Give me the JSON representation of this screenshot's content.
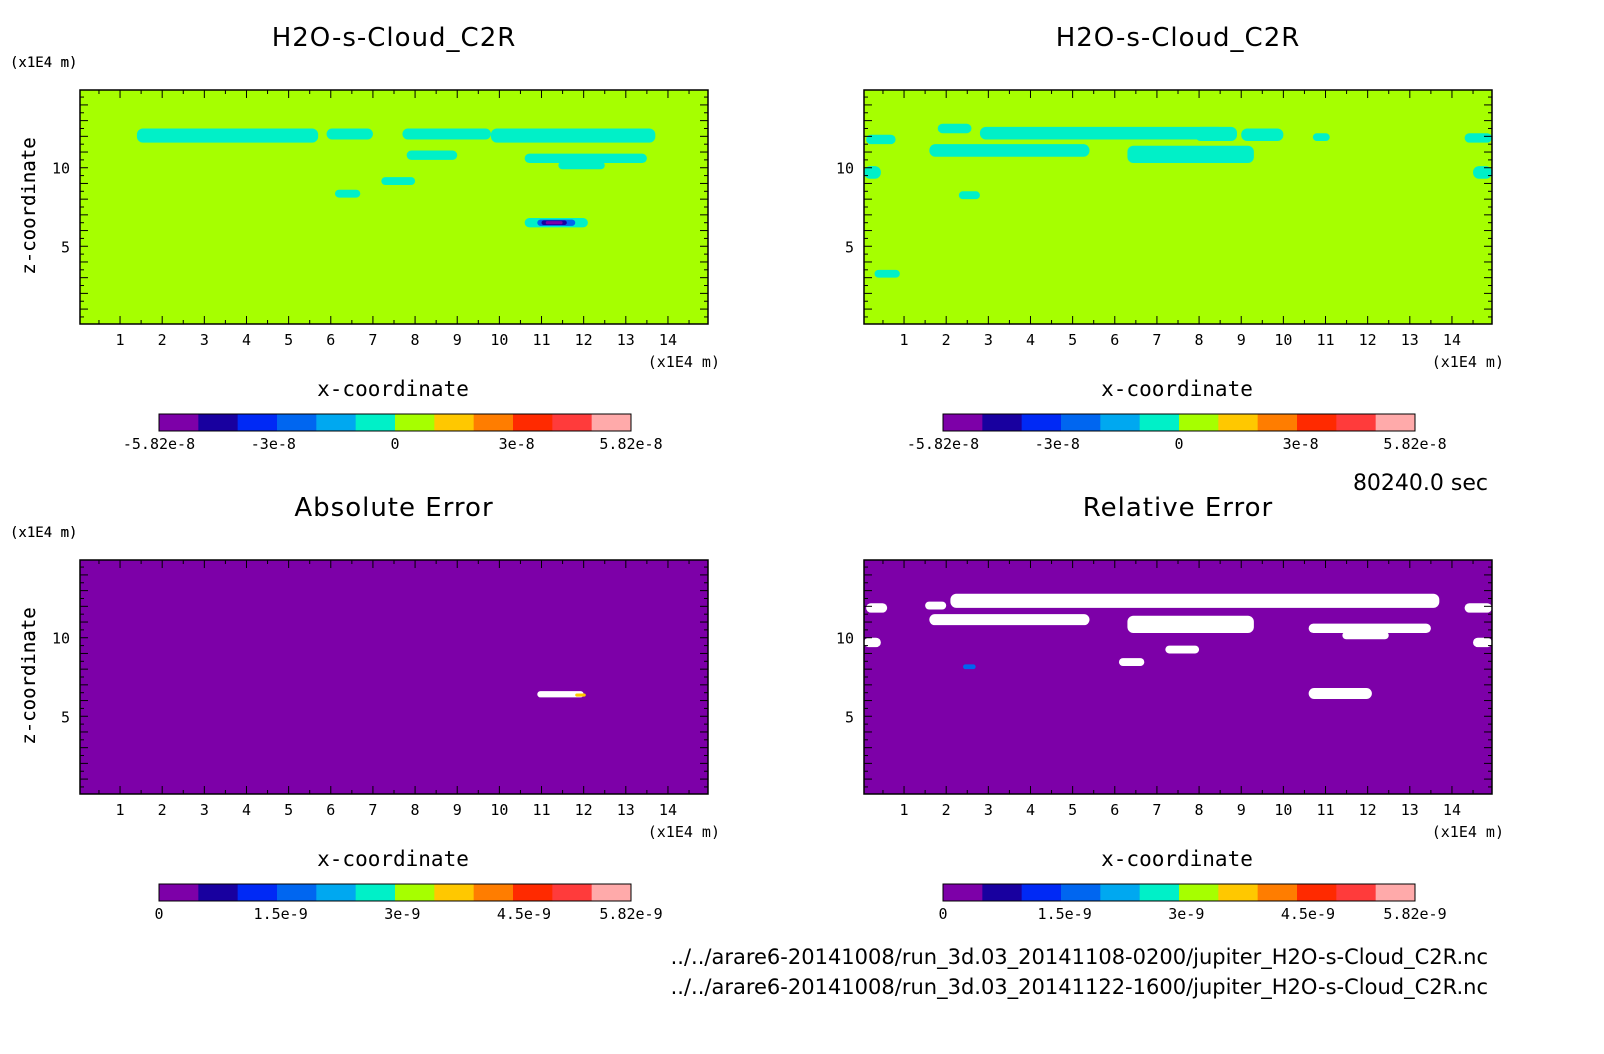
{
  "time_label": "80240.0 sec",
  "files": [
    "../../arare6-20141008/run_3d.03_20141108-0200/jupiter_H2O-s-Cloud_C2R.nc",
    "../../arare6-20141008/run_3d.03_20141122-1600/jupiter_H2O-s-Cloud_C2R.nc"
  ],
  "colors": {
    "palette": [
      "#7d00a8",
      "#18009f",
      "#0029f5",
      "#0066f0",
      "#00a8f0",
      "#00f0c8",
      "#a6ff00",
      "#ffc800",
      "#ff7d00",
      "#ff2a00",
      "#ff3b3b",
      "#ffaaaa"
    ],
    "mask": "#ffffff"
  },
  "chart_data": [
    {
      "type": "heatmap",
      "title": "H2O-s-Cloud_C2R",
      "xlabel": "x-coordinate",
      "ylabel": "z-coordinate",
      "x_unit": "(x1E4 m)",
      "y_unit": "(x1E4 m)",
      "xticks": [
        1,
        2,
        3,
        4,
        5,
        6,
        7,
        8,
        9,
        10,
        11,
        12,
        13,
        14
      ],
      "yticks": [
        5,
        10
      ],
      "xlim": [
        0.05,
        14.95
      ],
      "ylim": [
        0.05,
        14.95
      ],
      "background_color": "#a6ff00",
      "colorbar": {
        "ticks": [
          "-5.82e-8",
          "-3e-8",
          "0",
          "3e-8",
          "5.82e-8"
        ],
        "range": [
          -5.82e-08,
          5.82e-08
        ]
      },
      "regions": [
        {
          "color": "#00f0c8",
          "x0": 1.4,
          "x1": 5.7,
          "z0": 11.6,
          "z1": 12.5
        },
        {
          "color": "#00f0c8",
          "x0": 5.9,
          "x1": 7.0,
          "z0": 11.8,
          "z1": 12.5
        },
        {
          "color": "#00f0c8",
          "x0": 7.7,
          "x1": 9.8,
          "z0": 11.8,
          "z1": 12.5
        },
        {
          "color": "#00f0c8",
          "x0": 9.8,
          "x1": 13.7,
          "z0": 11.6,
          "z1": 12.5
        },
        {
          "color": "#00f0c8",
          "x0": 7.8,
          "x1": 9.0,
          "z0": 10.5,
          "z1": 11.1
        },
        {
          "color": "#00f0c8",
          "x0": 10.6,
          "x1": 13.5,
          "z0": 10.3,
          "z1": 10.9
        },
        {
          "color": "#00f0c8",
          "x0": 11.4,
          "x1": 12.5,
          "z0": 9.9,
          "z1": 10.4
        },
        {
          "color": "#00f0c8",
          "x0": 7.2,
          "x1": 8.0,
          "z0": 8.9,
          "z1": 9.4
        },
        {
          "color": "#00f0c8",
          "x0": 6.1,
          "x1": 6.7,
          "z0": 8.1,
          "z1": 8.6
        },
        {
          "color": "#00f0c8",
          "x0": 10.6,
          "x1": 12.1,
          "z0": 6.2,
          "z1": 6.8
        },
        {
          "color": "#0066f0",
          "x0": 10.9,
          "x1": 11.8,
          "z0": 6.3,
          "z1": 6.7
        },
        {
          "color": "#18009f",
          "x0": 11.0,
          "x1": 11.6,
          "z0": 6.35,
          "z1": 6.65
        },
        {
          "color": "#7d00a8",
          "x0": 11.1,
          "x1": 11.5,
          "z0": 6.4,
          "z1": 6.6
        }
      ]
    },
    {
      "type": "heatmap",
      "title": "H2O-s-Cloud_C2R",
      "xlabel": "x-coordinate",
      "ylabel": "z-coordinate",
      "x_unit": "(x1E4 m)",
      "y_unit": "(x1E4 m)",
      "xticks": [
        1,
        2,
        3,
        4,
        5,
        6,
        7,
        8,
        9,
        10,
        11,
        12,
        13,
        14
      ],
      "yticks": [
        5,
        10
      ],
      "xlim": [
        0.05,
        14.95
      ],
      "ylim": [
        0.05,
        14.95
      ],
      "background_color": "#a6ff00",
      "colorbar": {
        "ticks": [
          "-5.82e-8",
          "-3e-8",
          "0",
          "3e-8",
          "5.82e-8"
        ],
        "range": [
          -5.82e-08,
          5.82e-08
        ]
      },
      "regions": [
        {
          "color": "#00f0c8",
          "x0": 1.8,
          "x1": 2.6,
          "z0": 12.2,
          "z1": 12.8
        },
        {
          "color": "#00f0c8",
          "x0": 2.8,
          "x1": 8.6,
          "z0": 11.8,
          "z1": 12.6
        },
        {
          "color": "#00f0c8",
          "x0": 7.9,
          "x1": 8.9,
          "z0": 11.7,
          "z1": 12.6
        },
        {
          "color": "#00f0c8",
          "x0": 9.0,
          "x1": 10.0,
          "z0": 11.7,
          "z1": 12.5
        },
        {
          "color": "#00f0c8",
          "x0": 10.7,
          "x1": 11.1,
          "z0": 11.7,
          "z1": 12.2
        },
        {
          "color": "#00f0c8",
          "x0": 0.1,
          "x1": 0.8,
          "z0": 11.5,
          "z1": 12.1
        },
        {
          "color": "#00f0c8",
          "x0": 14.3,
          "x1": 14.95,
          "z0": 11.6,
          "z1": 12.2
        },
        {
          "color": "#00f0c8",
          "x0": 1.6,
          "x1": 5.4,
          "z0": 10.7,
          "z1": 11.5
        },
        {
          "color": "#00f0c8",
          "x0": 6.3,
          "x1": 9.3,
          "z0": 10.3,
          "z1": 11.4
        },
        {
          "color": "#00f0c8",
          "x0": 0.05,
          "x1": 0.45,
          "z0": 9.3,
          "z1": 10.1
        },
        {
          "color": "#00f0c8",
          "x0": 14.5,
          "x1": 14.95,
          "z0": 9.3,
          "z1": 10.1
        },
        {
          "color": "#00f0c8",
          "x0": 2.3,
          "x1": 2.8,
          "z0": 8.0,
          "z1": 8.5
        },
        {
          "color": "#00f0c8",
          "x0": 0.3,
          "x1": 0.9,
          "z0": 3.0,
          "z1": 3.5
        }
      ]
    },
    {
      "type": "heatmap",
      "title": "Absolute Error",
      "xlabel": "x-coordinate",
      "ylabel": "z-coordinate",
      "x_unit": "(x1E4 m)",
      "y_unit": "(x1E4 m)",
      "xticks": [
        1,
        2,
        3,
        4,
        5,
        6,
        7,
        8,
        9,
        10,
        11,
        12,
        13,
        14
      ],
      "yticks": [
        5,
        10
      ],
      "xlim": [
        0.05,
        14.95
      ],
      "ylim": [
        0.05,
        14.95
      ],
      "background_color": "#7d00a8",
      "colorbar": {
        "ticks": [
          "0",
          "1.5e-9",
          "3e-9",
          "4.5e-9",
          "5.82e-9"
        ],
        "range": [
          0,
          5.82e-09
        ]
      },
      "regions": [
        {
          "color": "#ffffff",
          "x0": 10.9,
          "x1": 12.0,
          "z0": 6.2,
          "z1": 6.6
        },
        {
          "color": "#ffc800",
          "x0": 11.8,
          "x1": 12.05,
          "z0": 6.25,
          "z1": 6.45
        }
      ]
    },
    {
      "type": "heatmap",
      "title": "Relative Error",
      "xlabel": "x-coordinate",
      "ylabel": "z-coordinate",
      "x_unit": "(x1E4 m)",
      "y_unit": "(x1E4 m)",
      "xticks": [
        1,
        2,
        3,
        4,
        5,
        6,
        7,
        8,
        9,
        10,
        11,
        12,
        13,
        14
      ],
      "yticks": [
        5,
        10
      ],
      "xlim": [
        0.05,
        14.95
      ],
      "ylim": [
        0.05,
        14.95
      ],
      "background_color": "#7d00a8",
      "colorbar": {
        "ticks": [
          "0",
          "1.5e-9",
          "3e-9",
          "4.5e-9",
          "5.82e-9"
        ],
        "range": [
          0,
          5.82e-09
        ]
      },
      "regions": [
        {
          "color": "#ffffff",
          "x0": 2.1,
          "x1": 13.7,
          "z0": 11.9,
          "z1": 12.8
        },
        {
          "color": "#ffffff",
          "x0": 1.5,
          "x1": 2.0,
          "z0": 11.8,
          "z1": 12.3
        },
        {
          "color": "#ffffff",
          "x0": 0.1,
          "x1": 0.6,
          "z0": 11.6,
          "z1": 12.2
        },
        {
          "color": "#ffffff",
          "x0": 14.3,
          "x1": 14.95,
          "z0": 11.6,
          "z1": 12.2
        },
        {
          "color": "#ffffff",
          "x0": 1.6,
          "x1": 5.4,
          "z0": 10.8,
          "z1": 11.5
        },
        {
          "color": "#ffffff",
          "x0": 6.3,
          "x1": 9.3,
          "z0": 10.3,
          "z1": 11.4
        },
        {
          "color": "#ffffff",
          "x0": 10.6,
          "x1": 13.5,
          "z0": 10.3,
          "z1": 10.9
        },
        {
          "color": "#ffffff",
          "x0": 11.4,
          "x1": 12.5,
          "z0": 9.9,
          "z1": 10.4
        },
        {
          "color": "#ffffff",
          "x0": 0.05,
          "x1": 0.45,
          "z0": 9.4,
          "z1": 10.0
        },
        {
          "color": "#ffffff",
          "x0": 14.5,
          "x1": 14.95,
          "z0": 9.4,
          "z1": 10.0
        },
        {
          "color": "#ffffff",
          "x0": 7.2,
          "x1": 8.0,
          "z0": 9.0,
          "z1": 9.5
        },
        {
          "color": "#ffffff",
          "x0": 6.1,
          "x1": 6.7,
          "z0": 8.2,
          "z1": 8.7
        },
        {
          "color": "#0066f0",
          "x0": 2.4,
          "x1": 2.7,
          "z0": 8.0,
          "z1": 8.3
        },
        {
          "color": "#ffffff",
          "x0": 10.6,
          "x1": 12.1,
          "z0": 6.1,
          "z1": 6.8
        }
      ]
    }
  ]
}
